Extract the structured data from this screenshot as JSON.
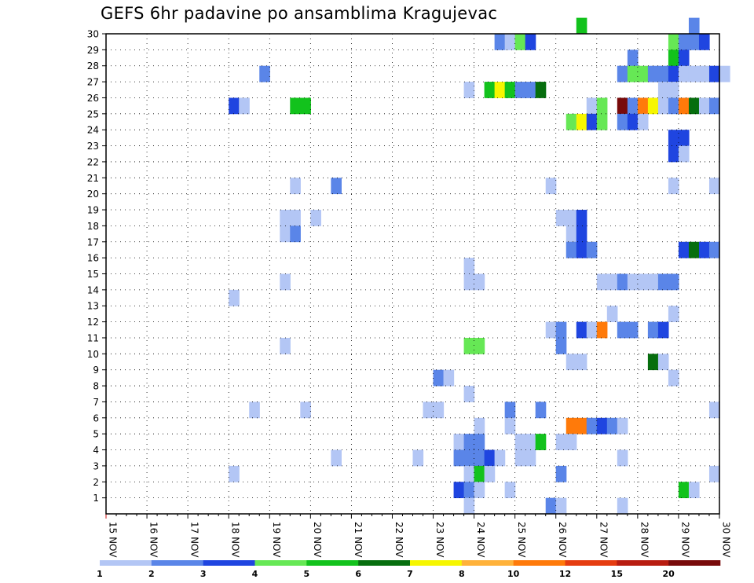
{
  "chart_data": {
    "type": "heatmap",
    "title": "GEFS 6hr padavine po ansamblima Kragujevac",
    "xlabel": "",
    "ylabel": "",
    "x_tick_labels": [
      "15 NOV",
      "16 NOV",
      "17 NOV",
      "18 NOV",
      "19 NOV",
      "20 NOV",
      "21 NOV",
      "22 NOV",
      "23 NOV",
      "24 NOV",
      "25 NOV",
      "26 NOV",
      "27 NOV",
      "28 NOV",
      "29 NOV",
      "30 NOV"
    ],
    "x_range": [
      "15 NOV 00Z",
      "30 NOV 00Z"
    ],
    "x_step_hours": 6,
    "y_tick_labels": [
      "1",
      "2",
      "3",
      "4",
      "5",
      "6",
      "7",
      "8",
      "9",
      "10",
      "11",
      "12",
      "13",
      "14",
      "15",
      "16",
      "17",
      "18",
      "19",
      "20",
      "21",
      "22",
      "23",
      "24",
      "25",
      "26",
      "27",
      "28",
      "29",
      "30"
    ],
    "y_range": [
      0,
      30
    ],
    "grid": true,
    "legend": {
      "placement": "bottom",
      "thresholds": [
        "1",
        "2",
        "3",
        "4",
        "5",
        "6",
        "7",
        "8",
        "10",
        "12",
        "15",
        "20"
      ],
      "colors": [
        "#b3c6f5",
        "#5a85e8",
        "#1f45e0",
        "#66e855",
        "#12c21c",
        "#066e0e",
        "#f6f600",
        "#ffb23a",
        "#ff7a0a",
        "#e53c10",
        "#b81c10",
        "#780a0a"
      ]
    },
    "cells": [
      [
        0,
        30,
        3
      ],
      [
        0,
        5,
        2
      ],
      [
        0,
        2,
        1
      ],
      [
        0,
        1,
        1
      ],
      [
        0,
        16,
        1
      ],
      [
        0,
        13,
        1
      ],
      [
        0,
        11,
        1
      ],
      [
        0,
        9,
        3
      ],
      [
        0,
        8,
        1
      ],
      [
        0,
        7,
        1
      ],
      [
        0,
        6,
        1
      ],
      [
        0,
        5,
        1
      ],
      [
        0,
        4,
        1
      ],
      [
        0,
        3,
        1
      ],
      [
        0,
        12,
        1
      ],
      [
        0,
        22,
        1
      ],
      [
        1,
        29,
        0
      ],
      [
        1,
        29,
        1
      ],
      [
        1,
        29,
        4
      ],
      [
        1,
        29,
        2
      ],
      [
        1,
        29,
        0
      ],
      [
        1,
        29,
        2
      ],
      [
        1,
        29,
        7
      ],
      [
        1,
        29,
        8
      ],
      [
        1,
        29,
        9
      ],
      [
        1,
        29,
        10
      ],
      [
        1,
        29,
        11
      ],
      [
        1,
        29,
        12
      ],
      [
        1,
        29,
        14
      ],
      [
        1,
        29,
        15
      ],
      [
        1,
        29,
        16
      ],
      [
        1,
        29,
        17
      ],
      [
        1,
        29,
        18
      ],
      [
        1,
        29,
        19
      ],
      [
        1,
        29,
        20
      ],
      [
        1,
        29,
        21
      ]
    ],
    "rows": [
      {
        "member": 30,
        "cells": [
          {
            "x": "26 NOV 12Z",
            "v": 5
          },
          {
            "x": "29 NOV 06Z",
            "v": 2
          }
        ]
      },
      {
        "member": 29,
        "cells": [
          {
            "x": "24 NOV 12Z",
            "v": 2
          },
          {
            "x": "24 NOV 18Z",
            "v": 1
          },
          {
            "x": "25 NOV 00Z",
            "v": 4
          },
          {
            "x": "25 NOV 06Z",
            "v": 3
          },
          {
            "x": "28 NOV 18Z",
            "v": 4
          },
          {
            "x": "29 NOV 00Z",
            "v": 2
          },
          {
            "x": "29 NOV 06Z",
            "v": 2
          },
          {
            "x": "29 NOV 12Z",
            "v": 3
          }
        ]
      },
      {
        "member": 28,
        "cells": [
          {
            "x": "27 NOV 18Z",
            "v": 2
          },
          {
            "x": "28 NOV 18Z",
            "v": 5
          },
          {
            "x": "29 NOV 00Z",
            "v": 3
          }
        ]
      },
      {
        "member": 27,
        "cells": [
          {
            "x": "18 NOV 18Z",
            "v": 2
          },
          {
            "x": "27 NOV 12Z",
            "v": 2
          },
          {
            "x": "27 NOV 18Z",
            "v": 4
          },
          {
            "x": "28 NOV 00Z",
            "v": 4
          },
          {
            "x": "28 NOV 06Z",
            "v": 2
          },
          {
            "x": "28 NOV 12Z",
            "v": 2
          },
          {
            "x": "28 NOV 18Z",
            "v": 3
          },
          {
            "x": "29 NOV 00Z",
            "v": 1
          },
          {
            "x": "29 NOV 06Z",
            "v": 1
          },
          {
            "x": "29 NOV 12Z",
            "v": 1
          },
          {
            "x": "29 NOV 18Z",
            "v": 3
          },
          {
            "x": "30 NOV 00Z",
            "v": 1
          }
        ]
      },
      {
        "member": 26,
        "cells": [
          {
            "x": "23 NOV 18Z",
            "v": 1
          },
          {
            "x": "24 NOV 06Z",
            "v": 5
          },
          {
            "x": "24 NOV 12Z",
            "v": 7
          },
          {
            "x": "24 NOV 18Z",
            "v": 5
          },
          {
            "x": "25 NOV 00Z",
            "v": 2
          },
          {
            "x": "25 NOV 06Z",
            "v": 2
          },
          {
            "x": "25 NOV 12Z",
            "v": 6
          },
          {
            "x": "28 NOV 12Z",
            "v": 1
          },
          {
            "x": "28 NOV 18Z",
            "v": 1
          }
        ]
      },
      {
        "member": 25,
        "cells": [
          {
            "x": "18 NOV 00Z",
            "v": 3
          },
          {
            "x": "18 NOV 06Z",
            "v": 1
          },
          {
            "x": "19 NOV 12Z",
            "v": 5
          },
          {
            "x": "19 NOV 18Z",
            "v": 5
          },
          {
            "x": "26 NOV 18Z",
            "v": 1
          },
          {
            "x": "27 NOV 00Z",
            "v": 4
          },
          {
            "x": "27 NOV 12Z",
            "v": 20
          },
          {
            "x": "27 NOV 18Z",
            "v": 2
          },
          {
            "x": "28 NOV 00Z",
            "v": 10
          },
          {
            "x": "28 NOV 06Z",
            "v": 7
          },
          {
            "x": "28 NOV 12Z",
            "v": 1
          },
          {
            "x": "28 NOV 18Z",
            "v": 2
          },
          {
            "x": "29 NOV 00Z",
            "v": 10
          },
          {
            "x": "29 NOV 06Z",
            "v": 6
          },
          {
            "x": "29 NOV 12Z",
            "v": 1
          },
          {
            "x": "29 NOV 18Z",
            "v": 2
          }
        ]
      },
      {
        "member": 24,
        "cells": [
          {
            "x": "26 NOV 06Z",
            "v": 4
          },
          {
            "x": "26 NOV 12Z",
            "v": 7
          },
          {
            "x": "26 NOV 18Z",
            "v": 3
          },
          {
            "x": "27 NOV 00Z",
            "v": 4
          },
          {
            "x": "27 NOV 12Z",
            "v": 2
          },
          {
            "x": "27 NOV 18Z",
            "v": 3
          },
          {
            "x": "28 NOV 00Z",
            "v": 1
          }
        ]
      },
      {
        "member": 23,
        "cells": [
          {
            "x": "28 NOV 18Z",
            "v": 3
          },
          {
            "x": "29 NOV 00Z",
            "v": 3
          }
        ]
      },
      {
        "member": 22,
        "cells": [
          {
            "x": "28 NOV 18Z",
            "v": 3
          },
          {
            "x": "29 NOV 00Z",
            "v": 1
          }
        ]
      },
      {
        "member": 20,
        "cells": [
          {
            "x": "19 NOV 12Z",
            "v": 1
          },
          {
            "x": "20 NOV 12Z",
            "v": 2
          },
          {
            "x": "25 NOV 18Z",
            "v": 1
          },
          {
            "x": "28 NOV 18Z",
            "v": 1
          },
          {
            "x": "29 NOV 18Z",
            "v": 1
          }
        ]
      },
      {
        "member": 18,
        "cells": [
          {
            "x": "19 NOV 06Z",
            "v": 1
          },
          {
            "x": "19 NOV 12Z",
            "v": 1
          },
          {
            "x": "20 NOV 00Z",
            "v": 1
          },
          {
            "x": "26 NOV 00Z",
            "v": 1
          },
          {
            "x": "26 NOV 06Z",
            "v": 1
          },
          {
            "x": "26 NOV 12Z",
            "v": 3
          }
        ]
      },
      {
        "member": 17,
        "cells": [
          {
            "x": "19 NOV 06Z",
            "v": 1
          },
          {
            "x": "19 NOV 12Z",
            "v": 2
          },
          {
            "x": "26 NOV 06Z",
            "v": 1
          },
          {
            "x": "26 NOV 12Z",
            "v": 3
          }
        ]
      },
      {
        "member": 16,
        "cells": [
          {
            "x": "26 NOV 06Z",
            "v": 2
          },
          {
            "x": "26 NOV 12Z",
            "v": 3
          },
          {
            "x": "26 NOV 18Z",
            "v": 2
          },
          {
            "x": "29 NOV 00Z",
            "v": 3
          },
          {
            "x": "29 NOV 06Z",
            "v": 6
          },
          {
            "x": "29 NOV 12Z",
            "v": 3
          },
          {
            "x": "29 NOV 18Z",
            "v": 2
          }
        ]
      },
      {
        "member": 15,
        "cells": [
          {
            "x": "23 NOV 18Z",
            "v": 1
          }
        ]
      },
      {
        "member": 14,
        "cells": [
          {
            "x": "19 NOV 06Z",
            "v": 1
          },
          {
            "x": "23 NOV 18Z",
            "v": 1
          },
          {
            "x": "24 NOV 00Z",
            "v": 1
          },
          {
            "x": "27 NOV 00Z",
            "v": 1
          },
          {
            "x": "27 NOV 06Z",
            "v": 1
          },
          {
            "x": "27 NOV 12Z",
            "v": 2
          },
          {
            "x": "27 NOV 18Z",
            "v": 1
          },
          {
            "x": "28 NOV 00Z",
            "v": 1
          },
          {
            "x": "28 NOV 06Z",
            "v": 1
          },
          {
            "x": "28 NOV 12Z",
            "v": 2
          },
          {
            "x": "28 NOV 18Z",
            "v": 2
          }
        ]
      },
      {
        "member": 13,
        "cells": [
          {
            "x": "18 NOV 00Z",
            "v": 1
          }
        ]
      },
      {
        "member": 12,
        "cells": [
          {
            "x": "27 NOV 06Z",
            "v": 1
          },
          {
            "x": "28 NOV 18Z",
            "v": 1
          }
        ]
      },
      {
        "member": 11,
        "cells": [
          {
            "x": "25 NOV 18Z",
            "v": 1
          },
          {
            "x": "26 NOV 00Z",
            "v": 2
          },
          {
            "x": "26 NOV 12Z",
            "v": 3
          },
          {
            "x": "26 NOV 18Z",
            "v": 1
          },
          {
            "x": "27 NOV 00Z",
            "v": 10
          },
          {
            "x": "27 NOV 12Z",
            "v": 2
          },
          {
            "x": "27 NOV 18Z",
            "v": 2
          },
          {
            "x": "28 NOV 06Z",
            "v": 2
          },
          {
            "x": "28 NOV 12Z",
            "v": 3
          }
        ]
      },
      {
        "member": 10,
        "cells": [
          {
            "x": "19 NOV 06Z",
            "v": 1
          },
          {
            "x": "23 NOV 18Z",
            "v": 4
          },
          {
            "x": "24 NOV 00Z",
            "v": 4
          },
          {
            "x": "26 NOV 00Z",
            "v": 2
          }
        ]
      },
      {
        "member": 9,
        "cells": [
          {
            "x": "26 NOV 06Z",
            "v": 1
          },
          {
            "x": "26 NOV 12Z",
            "v": 1
          },
          {
            "x": "28 NOV 06Z",
            "v": 6
          },
          {
            "x": "28 NOV 12Z",
            "v": 1
          }
        ]
      },
      {
        "member": 8,
        "cells": [
          {
            "x": "23 NOV 00Z",
            "v": 2
          },
          {
            "x": "23 NOV 06Z",
            "v": 1
          },
          {
            "x": "28 NOV 18Z",
            "v": 1
          }
        ]
      },
      {
        "member": 7,
        "cells": [
          {
            "x": "23 NOV 18Z",
            "v": 1
          }
        ]
      },
      {
        "member": 6,
        "cells": [
          {
            "x": "18 NOV 12Z",
            "v": 1
          },
          {
            "x": "19 NOV 18Z",
            "v": 1
          },
          {
            "x": "22 NOV 18Z",
            "v": 1
          },
          {
            "x": "23 NOV 00Z",
            "v": 1
          },
          {
            "x": "24 NOV 18Z",
            "v": 2
          },
          {
            "x": "25 NOV 12Z",
            "v": 2
          },
          {
            "x": "29 NOV 18Z",
            "v": 1
          }
        ]
      },
      {
        "member": 5,
        "cells": [
          {
            "x": "24 NOV 00Z",
            "v": 1
          },
          {
            "x": "24 NOV 18Z",
            "v": 1
          },
          {
            "x": "26 NOV 06Z",
            "v": 10
          },
          {
            "x": "26 NOV 12Z",
            "v": 10
          },
          {
            "x": "26 NOV 18Z",
            "v": 2
          },
          {
            "x": "27 NOV 00Z",
            "v": 3
          },
          {
            "x": "27 NOV 06Z",
            "v": 2
          },
          {
            "x": "27 NOV 12Z",
            "v": 1
          }
        ]
      },
      {
        "member": 4,
        "cells": [
          {
            "x": "23 NOV 12Z",
            "v": 1
          },
          {
            "x": "23 NOV 18Z",
            "v": 2
          },
          {
            "x": "24 NOV 00Z",
            "v": 2
          },
          {
            "x": "25 NOV 00Z",
            "v": 1
          },
          {
            "x": "25 NOV 06Z",
            "v": 1
          },
          {
            "x": "25 NOV 12Z",
            "v": 5
          },
          {
            "x": "26 NOV 00Z",
            "v": 1
          },
          {
            "x": "26 NOV 06Z",
            "v": 1
          }
        ]
      },
      {
        "member": 3,
        "cells": [
          {
            "x": "20 NOV 12Z",
            "v": 1
          },
          {
            "x": "22 NOV 12Z",
            "v": 1
          },
          {
            "x": "23 NOV 12Z",
            "v": 2
          },
          {
            "x": "23 NOV 18Z",
            "v": 2
          },
          {
            "x": "24 NOV 00Z",
            "v": 2
          },
          {
            "x": "24 NOV 06Z",
            "v": 3
          },
          {
            "x": "24 NOV 12Z",
            "v": 1
          },
          {
            "x": "25 NOV 00Z",
            "v": 1
          },
          {
            "x": "25 NOV 06Z",
            "v": 1
          },
          {
            "x": "27 NOV 12Z",
            "v": 1
          }
        ]
      },
      {
        "member": 2,
        "cells": [
          {
            "x": "18 NOV 00Z",
            "v": 1
          },
          {
            "x": "23 NOV 18Z",
            "v": 1
          },
          {
            "x": "24 NOV 00Z",
            "v": 5
          },
          {
            "x": "24 NOV 06Z",
            "v": 1
          },
          {
            "x": "26 NOV 00Z",
            "v": 2
          },
          {
            "x": "29 NOV 18Z",
            "v": 1
          }
        ]
      },
      {
        "member": 1,
        "cells": [
          {
            "x": "23 NOV 12Z",
            "v": 3
          },
          {
            "x": "23 NOV 18Z",
            "v": 2
          },
          {
            "x": "24 NOV 00Z",
            "v": 1
          },
          {
            "x": "24 NOV 18Z",
            "v": 1
          },
          {
            "x": "29 NOV 00Z",
            "v": 5
          },
          {
            "x": "29 NOV 06Z",
            "v": 1
          }
        ]
      },
      {
        "member": 0,
        "cells": [
          {
            "x": "23 NOV 18Z",
            "v": 1
          },
          {
            "x": "25 NOV 18Z",
            "v": 2
          },
          {
            "x": "26 NOV 00Z",
            "v": 1
          },
          {
            "x": "27 NOV 12Z",
            "v": 1
          }
        ]
      }
    ]
  }
}
